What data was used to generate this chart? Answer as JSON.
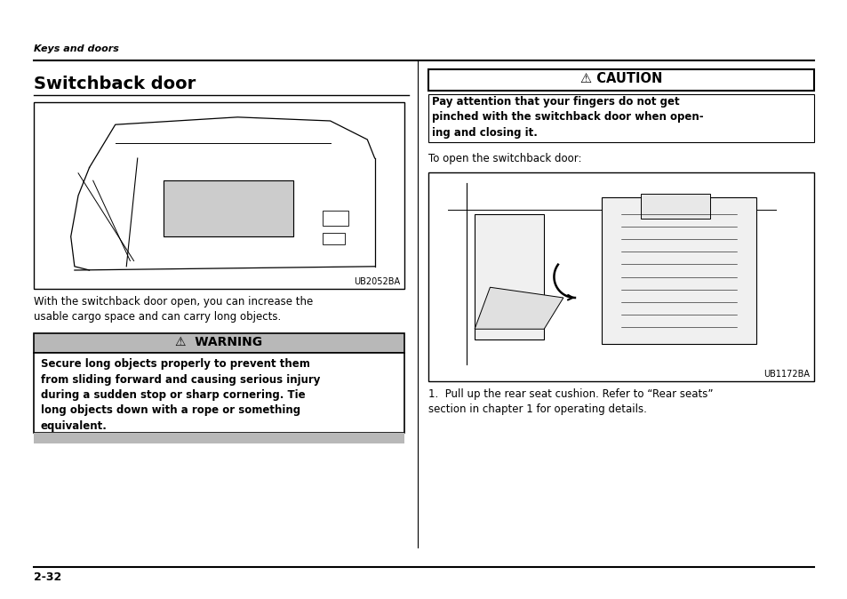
{
  "bg_color": "#ffffff",
  "page_width": 9.54,
  "page_height": 6.74,
  "top_italic_text": "Keys and doors",
  "title": "Switchback door",
  "image1_label": "UB2052BA",
  "image2_label": "UB1172BA",
  "caption_text": "With the switchback door open, you can increase the\nusable cargo space and can carry long objects.",
  "warning_title": "⚠  WARNING",
  "warning_body": "Secure long objects properly to prevent them\nfrom sliding forward and causing serious injury\nduring a sudden stop or sharp cornering. Tie\nlong objects down with a rope or something\nequivalent.",
  "caution_title": "⚠ CAUTION",
  "caution_body": "Pay attention that your fingers do not get\npinched with the switchback door when open-\ning and closing it.",
  "intro_text": "To open the switchback door:",
  "step1_text": "1.  Pull up the rear seat cushion. Refer to “Rear seats”\nsection in chapter 1 for operating details.",
  "footer_text": "2-32"
}
